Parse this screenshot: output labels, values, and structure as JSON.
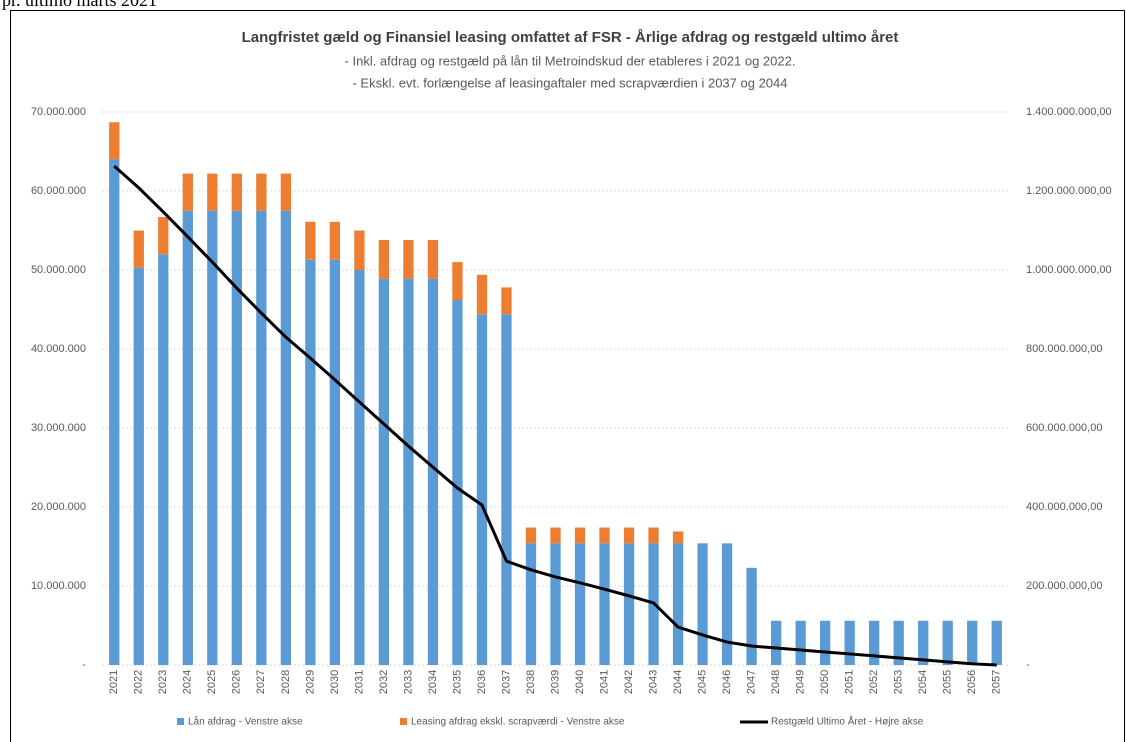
{
  "page_header": "pr. ultimo marts 2021",
  "chart_data": {
    "type": "bar",
    "stacked": true,
    "title": "Langfristet gæld og Finansiel leasing omfattet af FSR - Årlige afdrag og restgæld ultimo året",
    "subtitle": [
      "- Inkl. afdrag og restgæld på lån til Metroindskud der etableres i 2021 og 2022.",
      "- Ekskl. evt. forlængelse af leasingaftaler med scrapværdien i 2037 og 2044"
    ],
    "categories": [
      "2021",
      "2022",
      "2023",
      "2024",
      "2025",
      "2026",
      "2027",
      "2028",
      "2029",
      "2030",
      "2031",
      "2032",
      "2033",
      "2034",
      "2035",
      "2036",
      "2037",
      "2038",
      "2039",
      "2040",
      "2041",
      "2042",
      "2043",
      "2044",
      "2045",
      "2046",
      "2047",
      "2048",
      "2049",
      "2050",
      "2051",
      "2052",
      "2053",
      "2054",
      "2055",
      "2056",
      "2057"
    ],
    "series": [
      {
        "name": "Lån afdrag - Venstre akse",
        "color": "#5b9bd5",
        "type": "bar",
        "values": [
          64000000,
          50300000,
          52000000,
          57500000,
          57500000,
          57500000,
          57500000,
          57500000,
          51300000,
          51300000,
          50000000,
          48900000,
          48900000,
          48900000,
          46200000,
          44400000,
          44400000,
          15400000,
          15400000,
          15400000,
          15400000,
          15400000,
          15400000,
          15400000,
          15400000,
          15400000,
          12300000,
          5600000,
          5600000,
          5600000,
          5600000,
          5600000,
          5600000,
          5600000,
          5600000,
          5600000,
          5600000
        ]
      },
      {
        "name": "Leasing afdrag ekskl. scrapværdi - Venstre akse",
        "color": "#ed7d31",
        "type": "bar",
        "values": [
          4700000,
          4700000,
          4700000,
          4700000,
          4700000,
          4700000,
          4700000,
          4700000,
          4800000,
          4800000,
          5000000,
          4900000,
          4900000,
          4900000,
          4800000,
          5000000,
          3400000,
          2000000,
          2000000,
          2000000,
          2000000,
          2000000,
          2000000,
          1500000,
          0,
          0,
          0,
          0,
          0,
          0,
          0,
          0,
          0,
          0,
          0,
          0,
          0
        ]
      },
      {
        "name": "Restgæld Ultimo Året - Højre akse",
        "color": "#000000",
        "type": "line",
        "axis": "y2",
        "values": [
          1263000000,
          1208000000,
          1147000000,
          1084000000,
          1020000000,
          954000000,
          891000000,
          830000000,
          777000000,
          722000000,
          666000000,
          610000000,
          554000000,
          501000000,
          448000000,
          405000000,
          263000000,
          241000000,
          223000000,
          208000000,
          192000000,
          175000000,
          157000000,
          96000000,
          76000000,
          58000000,
          48000000,
          43000000,
          38000000,
          33000000,
          28000000,
          23000000,
          18000000,
          13000000,
          8000000,
          3000000,
          0
        ]
      }
    ],
    "ylim": [
      0,
      70000000
    ],
    "yticks": [
      {
        "value": 0,
        "label": "-"
      },
      {
        "value": 10000000,
        "label": "10.000.000"
      },
      {
        "value": 20000000,
        "label": "20.000.000"
      },
      {
        "value": 30000000,
        "label": "30.000.000"
      },
      {
        "value": 40000000,
        "label": "40.000.000"
      },
      {
        "value": 50000000,
        "label": "50.000.000"
      },
      {
        "value": 60000000,
        "label": "60.000.000"
      },
      {
        "value": 70000000,
        "label": "70.000.000"
      }
    ],
    "y2lim": [
      0,
      1400000000
    ],
    "y2ticks": [
      {
        "value": 0,
        "label": "-"
      },
      {
        "value": 200000000,
        "label": "200.000.000,00"
      },
      {
        "value": 400000000,
        "label": "400.000.000,00"
      },
      {
        "value": 600000000,
        "label": "600.000.000,00"
      },
      {
        "value": 800000000,
        "label": "800.000.000,00"
      },
      {
        "value": 1000000000,
        "label": "1.000.000.000,00"
      },
      {
        "value": 1200000000,
        "label": "1.200.000.000,00"
      },
      {
        "value": 1400000000,
        "label": "1.400.000.000,00"
      }
    ],
    "grid": true,
    "legend": "bottom"
  }
}
